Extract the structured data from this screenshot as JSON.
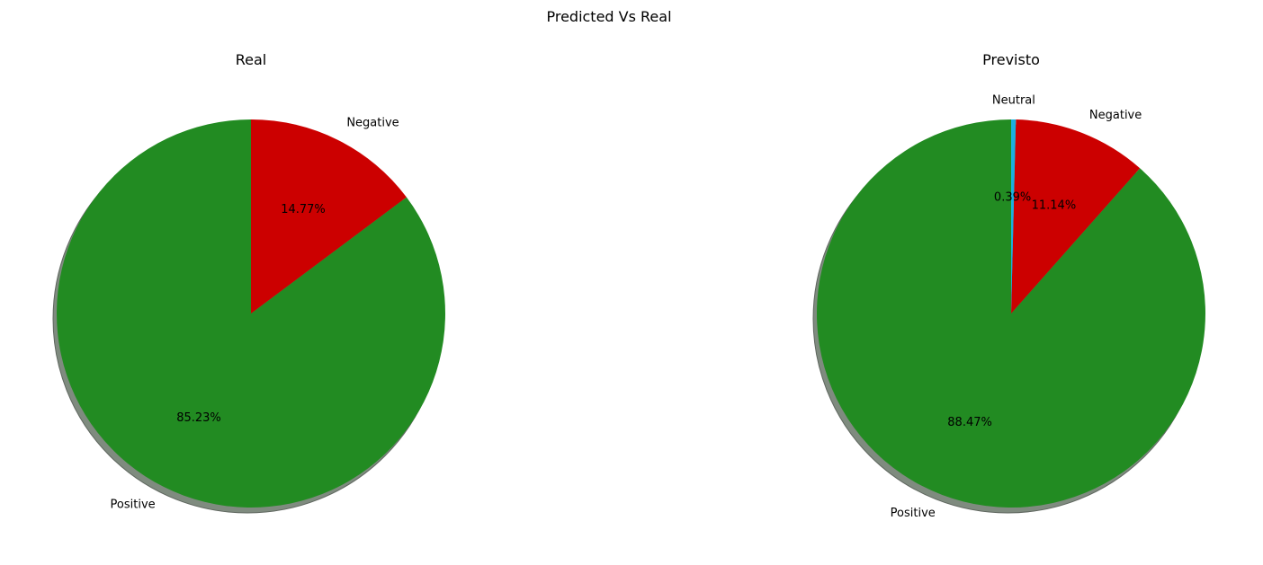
{
  "figure": {
    "title": "Predicted Vs Real"
  },
  "chart_data": [
    {
      "type": "pie",
      "title": "Real",
      "labels": [
        "Positive",
        "Negative"
      ],
      "values": [
        85.23,
        14.77
      ],
      "percent_labels": [
        "85.23%",
        "14.77%"
      ],
      "colors": [
        "#228b22",
        "#cc0000"
      ],
      "start_angle_deg": 90,
      "direction": "counterclockwise",
      "shadow": true
    },
    {
      "type": "pie",
      "title": "Previsto",
      "labels": [
        "Positive",
        "Negative",
        "Neutral"
      ],
      "values": [
        88.47,
        11.14,
        0.39
      ],
      "percent_labels": [
        "88.47%",
        "11.14%",
        "0.39%"
      ],
      "colors": [
        "#228b22",
        "#cc0000",
        "#1ab0e0"
      ],
      "start_angle_deg": 90,
      "direction": "counterclockwise",
      "shadow": true
    }
  ],
  "colors": {
    "background": "#ffffff",
    "shadow": "#7f8b7f",
    "text": "#000000"
  }
}
